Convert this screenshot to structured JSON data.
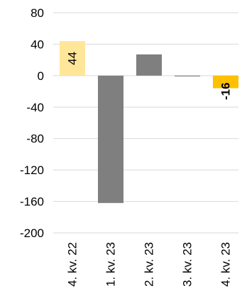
{
  "chart_data": {
    "type": "bar",
    "title": "",
    "xlabel": "",
    "ylabel": "",
    "categories": [
      "4. kv. 22",
      "1. kv. 23",
      "2. kv. 23",
      "3. kv. 23",
      "4. kv. 23"
    ],
    "values": [
      44,
      -162,
      27,
      -1,
      -16
    ],
    "data_labels": [
      "44",
      "",
      "",
      "",
      "-16"
    ],
    "ylim": [
      -200,
      80
    ],
    "yticks": [
      80,
      40,
      0,
      -40,
      -80,
      -120,
      -160,
      -200
    ],
    "ytick_labels": [
      "80",
      "40",
      "0",
      "-40",
      "-80",
      "-120",
      "-160",
      "-200"
    ],
    "grid": true,
    "colors": {
      "highlight_light": "#FFE699",
      "neutral": "#7F7F7F",
      "highlight_strong": "#FFC000",
      "grid": "#D9D9D9"
    },
    "bar_colors": [
      "#FFE699",
      "#7F7F7F",
      "#7F7F7F",
      "#7F7F7F",
      "#FFC000"
    ]
  }
}
